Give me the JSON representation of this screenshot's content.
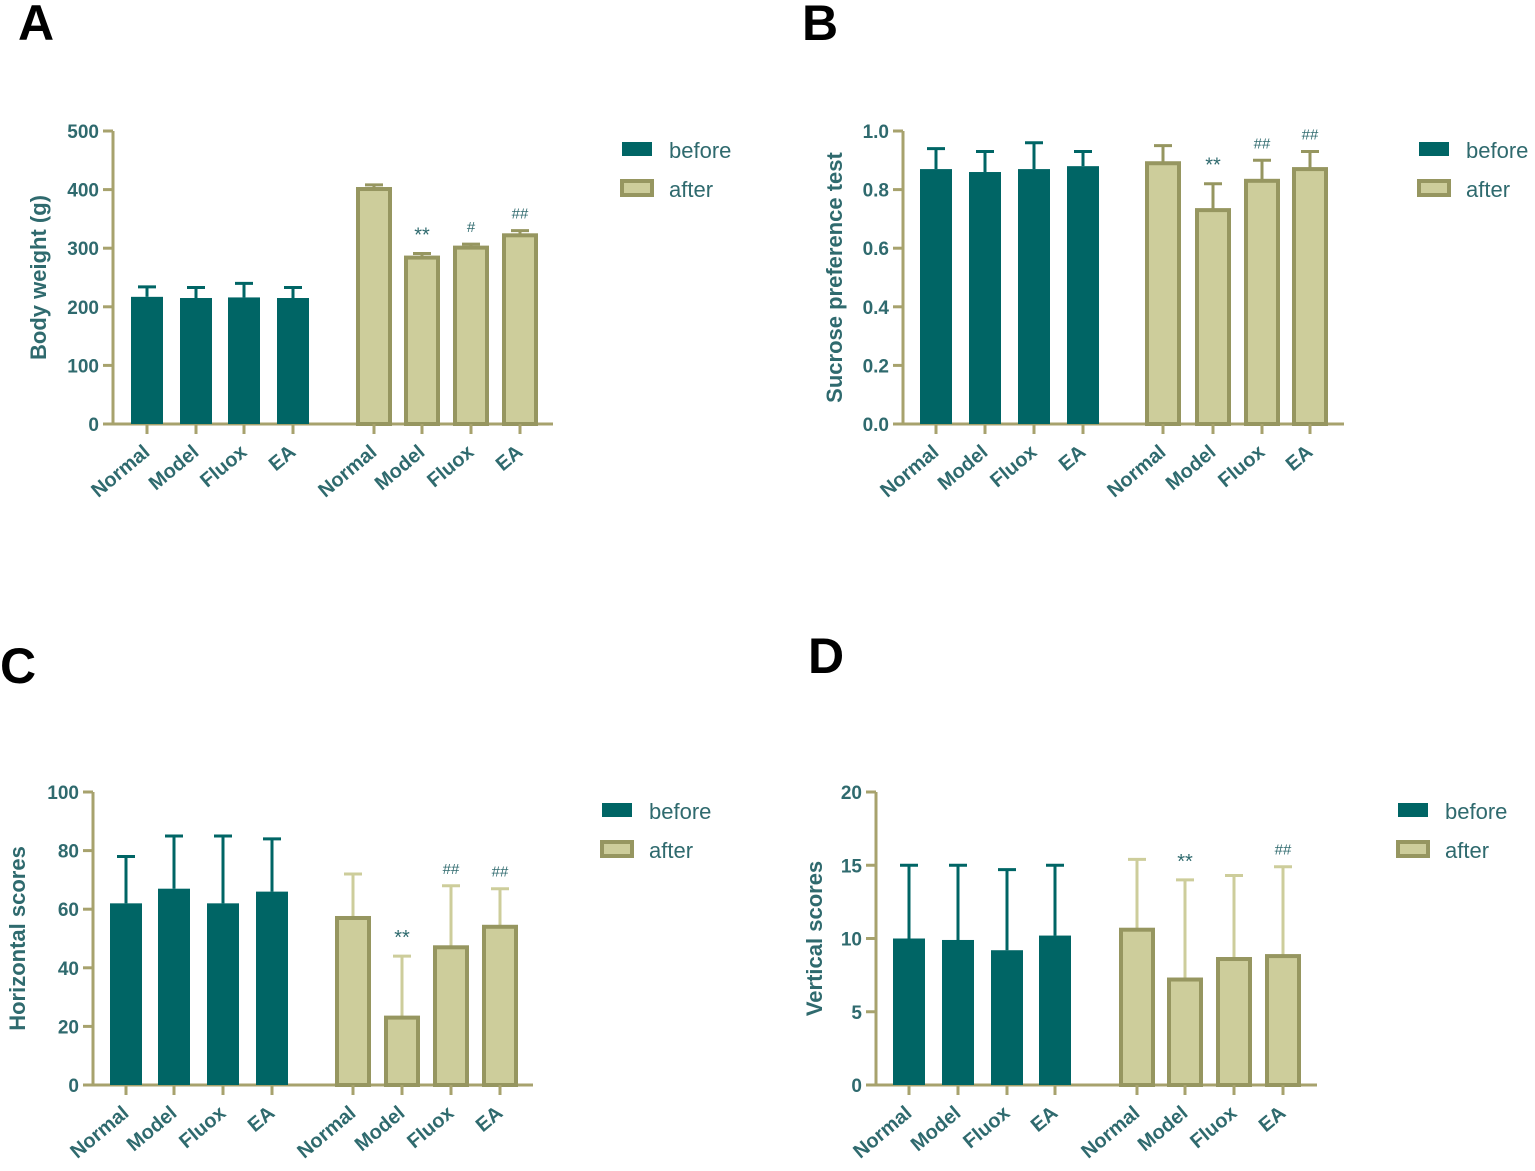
{
  "colors": {
    "before_fill": "#006565",
    "after_fill": "#cdcd9b",
    "after_stroke": "#969660",
    "axis": "#a7a26d",
    "text": "#2f6a6e",
    "label_black": "#000000"
  },
  "chart_data": [
    {
      "panel": "A",
      "type": "bar",
      "ylabel": "Body weight (g)",
      "ylim": [
        0,
        500
      ],
      "yticks": [
        "0",
        "100",
        "200",
        "300",
        "400",
        "500"
      ],
      "groups": [
        {
          "name": "before",
          "categories": [
            "Normal",
            "Model",
            "Fluox",
            "EA"
          ],
          "values": [
            217,
            215,
            216,
            215
          ],
          "errors": [
            17,
            18,
            24,
            18
          ],
          "annotations": [
            "",
            "",
            "",
            ""
          ]
        },
        {
          "name": "after",
          "categories": [
            "Normal",
            "Model",
            "Fluox",
            "EA"
          ],
          "values": [
            401,
            284,
            301,
            322
          ],
          "errors": [
            7,
            7,
            6,
            8
          ],
          "annotations": [
            "",
            "**",
            "#",
            "##"
          ]
        }
      ],
      "legend": [
        "before",
        "after"
      ]
    },
    {
      "panel": "B",
      "type": "bar",
      "ylabel": "Sucrose preference test",
      "ylim": [
        0,
        1.0
      ],
      "yticks": [
        "0.0",
        "0.2",
        "0.4",
        "0.6",
        "0.8",
        "1.0"
      ],
      "groups": [
        {
          "name": "before",
          "categories": [
            "Normal",
            "Model",
            "Fluox",
            "EA"
          ],
          "values": [
            0.87,
            0.86,
            0.87,
            0.88
          ],
          "errors": [
            0.07,
            0.07,
            0.09,
            0.05
          ],
          "annotations": [
            "",
            "",
            "",
            ""
          ]
        },
        {
          "name": "after",
          "categories": [
            "Normal",
            "Model",
            "Fluox",
            "EA"
          ],
          "values": [
            0.89,
            0.73,
            0.83,
            0.87
          ],
          "errors": [
            0.06,
            0.09,
            0.07,
            0.06
          ],
          "annotations": [
            "",
            "**",
            "##",
            "##"
          ]
        }
      ],
      "legend": [
        "before",
        "after"
      ]
    },
    {
      "panel": "C",
      "type": "bar",
      "ylabel": "Horizontal scores",
      "ylim": [
        0,
        100
      ],
      "yticks": [
        "0",
        "20",
        "40",
        "60",
        "80",
        "100"
      ],
      "groups": [
        {
          "name": "before",
          "categories": [
            "Normal",
            "Model",
            "Fluox",
            "EA"
          ],
          "values": [
            62,
            67,
            62,
            66
          ],
          "errors": [
            16,
            18,
            23,
            18
          ],
          "annotations": [
            "",
            "",
            "",
            ""
          ]
        },
        {
          "name": "after",
          "categories": [
            "Normal",
            "Model",
            "Fluox",
            "EA"
          ],
          "values": [
            57,
            23,
            47,
            54
          ],
          "errors": [
            15,
            21,
            21,
            13
          ],
          "annotations": [
            "",
            "**",
            "##",
            "##"
          ]
        }
      ],
      "legend": [
        "before",
        "after"
      ]
    },
    {
      "panel": "D",
      "type": "bar",
      "ylabel": "Vertical scores",
      "ylim": [
        0,
        20
      ],
      "yticks": [
        "0",
        "5",
        "10",
        "15",
        "20"
      ],
      "groups": [
        {
          "name": "before",
          "categories": [
            "Normal",
            "Model",
            "Fluox",
            "EA"
          ],
          "values": [
            10.0,
            9.9,
            9.2,
            10.2
          ],
          "errors": [
            5.0,
            5.1,
            5.5,
            4.8
          ],
          "annotations": [
            "",
            "",
            "",
            ""
          ]
        },
        {
          "name": "after",
          "categories": [
            "Normal",
            "Model",
            "Fluox",
            "EA"
          ],
          "values": [
            10.6,
            7.2,
            8.6,
            8.8
          ],
          "errors": [
            4.8,
            6.8,
            5.7,
            6.1
          ],
          "annotations": [
            "",
            "**",
            "",
            "##"
          ]
        }
      ],
      "legend": [
        "before",
        "after"
      ]
    }
  ]
}
